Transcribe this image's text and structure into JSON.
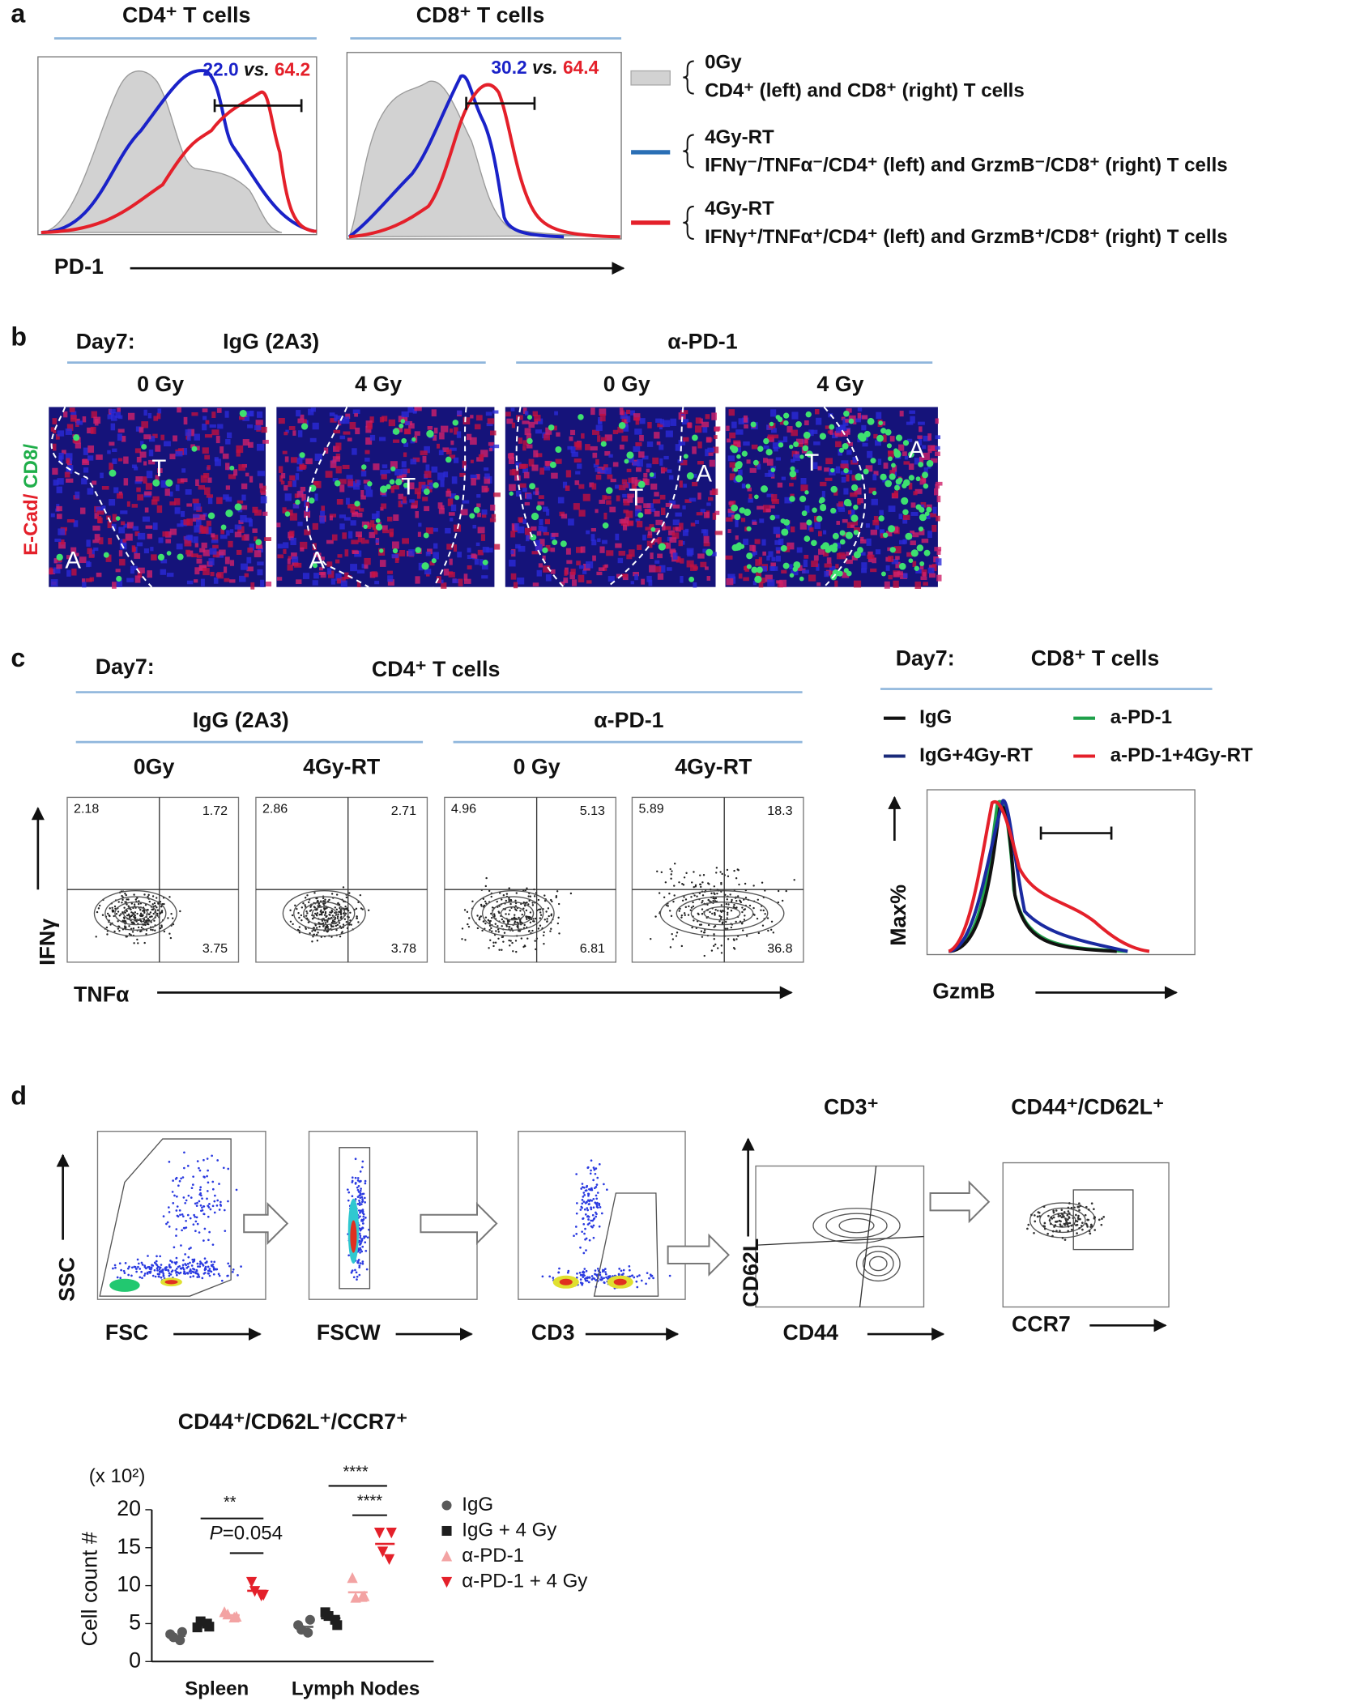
{
  "panel_a": {
    "label": "a",
    "titles": [
      "CD4⁺ T cells",
      "CD8⁺ T cells"
    ],
    "comparisons": [
      {
        "blue": "22.0",
        "vs": "vs.",
        "red": "64.2"
      },
      {
        "blue": "30.2",
        "vs": "vs.",
        "red": "64.4"
      }
    ],
    "x_label": "PD-1",
    "legend": [
      {
        "line1": "0Gy",
        "line2": "CD4⁺ (left) and CD8⁺ (right) T cells"
      },
      {
        "line1": "4Gy-RT",
        "line2": "IFNγ⁻/TNFα⁻/CD4⁺ (left) and GrzmB⁻/CD8⁺ (right) T cells"
      },
      {
        "line1": "4Gy-RT",
        "line2": "IFNγ⁺/TNFα⁺/CD4⁺ (left) and GrzmB⁺/CD8⁺ (right) T cells"
      }
    ]
  },
  "panel_b": {
    "label": "b",
    "day": "Day7:",
    "groups": [
      "IgG (2A3)",
      "α-PD-1"
    ],
    "doses": [
      "0 Gy",
      "4 Gy",
      "0 Gy",
      "4 Gy"
    ],
    "stain": [
      "E-Cad/",
      "CD8/"
    ],
    "tumor": "T",
    "alveoli": "A"
  },
  "panel_c": {
    "label": "c",
    "day": "Day7:",
    "title": "CD4⁺ T cells",
    "groups": [
      "IgG (2A3)",
      "α-PD-1"
    ],
    "conditions": [
      "0Gy",
      "4Gy-RT",
      "0 Gy",
      "4Gy-RT"
    ],
    "quadrants": [
      [
        "2.18",
        "1.72",
        "3.75"
      ],
      [
        "2.86",
        "2.71",
        "3.78"
      ],
      [
        "4.96",
        "5.13",
        "6.81"
      ],
      [
        "5.89",
        "18.3",
        "36.8"
      ]
    ],
    "y_label": "IFNγ",
    "x_label": "TNFα",
    "right": {
      "day": "Day7:",
      "title": "CD8⁺ T cells",
      "legend": [
        "IgG",
        "a-PD-1",
        "IgG+4Gy-RT",
        "a-PD-1+4Gy-RT"
      ],
      "y_label": "Max%",
      "x_label": "GzmB"
    }
  },
  "panel_d": {
    "label": "d",
    "gate_titles": [
      "CD3⁺",
      "CD44⁺/CD62L⁺"
    ],
    "axes": {
      "ssc": "SSC",
      "fsc": "FSC",
      "fscw": "FSCW",
      "cd3": "CD3",
      "cd62l": "CD62L",
      "cd44": "CD44",
      "ccr7": "CCR7"
    }
  },
  "chart_data": {
    "type": "dot",
    "title": "CD44⁺/CD62L⁺/CCR7⁺",
    "y_unit": "(x 10²)",
    "y_label": "Cell count #",
    "categories": [
      "Spleen",
      "Lymph Nodes"
    ],
    "ylim": [
      0,
      20
    ],
    "yticks": [
      0,
      5,
      10,
      15,
      20
    ],
    "series": [
      {
        "name": "IgG",
        "color": "#5a5a5a",
        "marker": "circle",
        "values": [
          [
            3.6,
            2.8,
            3.2,
            3.9
          ],
          [
            4.8,
            3.8,
            4.2,
            5.5
          ]
        ]
      },
      {
        "name": "IgG + 4 Gy",
        "color": "#1e1e1e",
        "marker": "square",
        "values": [
          [
            4.5,
            5.0,
            5.3,
            4.6
          ],
          [
            6.5,
            5.5,
            6.0,
            4.8
          ]
        ]
      },
      {
        "name": "α-PD-1",
        "color": "#f3a3a3",
        "marker": "triangle-up",
        "values": [
          [
            6.5,
            5.8,
            6.2,
            5.9
          ],
          [
            11.0,
            8.5,
            8.4,
            8.6
          ]
        ]
      },
      {
        "name": "α-PD-1 + 4 Gy",
        "color": "#e4202a",
        "marker": "triangle-down",
        "values": [
          [
            10.5,
            8.7,
            9.3,
            8.8
          ],
          [
            17.0,
            13.5,
            14.5,
            17.0
          ]
        ]
      }
    ],
    "annotations": [
      {
        "text": "**"
      },
      {
        "italic": "P",
        "text": "=0.054"
      },
      {
        "text": "****"
      },
      {
        "text": "****"
      }
    ]
  }
}
